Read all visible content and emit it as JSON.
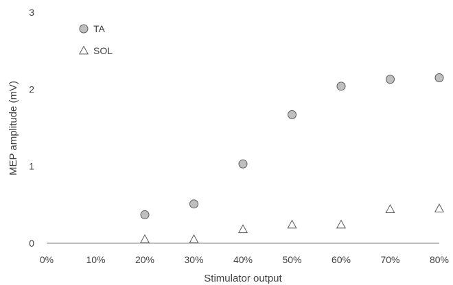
{
  "chart_data": {
    "type": "scatter",
    "xlabel": "Stimulator output",
    "ylabel": "MEP amplitude (mV)",
    "categories": [
      "0%",
      "10%",
      "20%",
      "30%",
      "40%",
      "50%",
      "60%",
      "70%",
      "80%"
    ],
    "x": [
      0,
      10,
      20,
      30,
      40,
      50,
      60,
      70,
      80
    ],
    "xlim": [
      0,
      80
    ],
    "ylim": [
      0,
      3
    ],
    "yticks": [
      "0",
      "1",
      "2",
      "3"
    ],
    "grid": false,
    "legend_position": "top-left",
    "series": [
      {
        "name": "TA",
        "marker": "circle",
        "color": "#bfbfbf",
        "edge_color": "#595959",
        "x": [
          20,
          30,
          40,
          50,
          60,
          70,
          80
        ],
        "values": [
          0.37,
          0.51,
          1.03,
          1.67,
          2.04,
          2.13,
          2.15
        ]
      },
      {
        "name": "SOL",
        "marker": "triangle",
        "color": "#ffffff",
        "edge_color": "#595959",
        "x": [
          20,
          30,
          40,
          50,
          60,
          70,
          80
        ],
        "values": [
          0.05,
          0.05,
          0.18,
          0.24,
          0.24,
          0.44,
          0.45
        ]
      }
    ]
  }
}
